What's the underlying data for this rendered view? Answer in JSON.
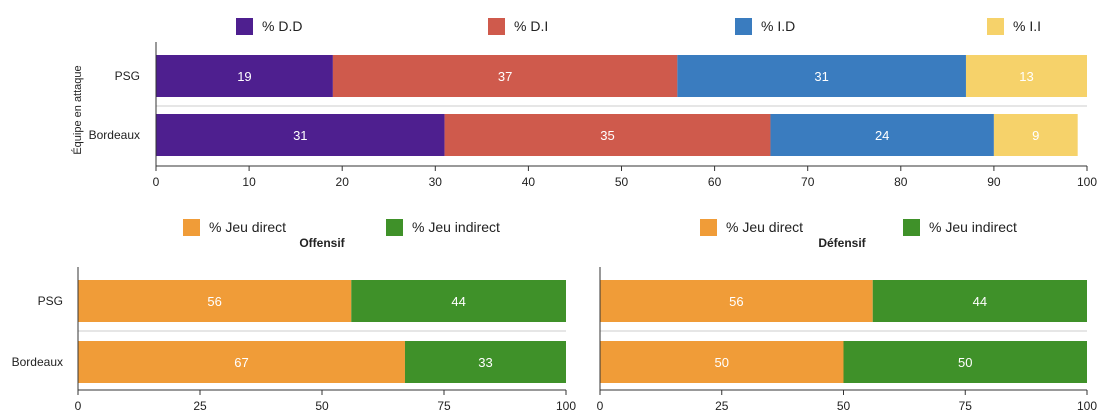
{
  "chart_data": [
    {
      "type": "bar",
      "orientation": "horizontal",
      "stacked": true,
      "categories": [
        "PSG",
        "Bordeaux"
      ],
      "series": [
        {
          "name": "% D.D",
          "values": [
            19,
            31
          ],
          "color": "#4e1f8f"
        },
        {
          "name": "% D.I",
          "values": [
            37,
            35
          ],
          "color": "#cf5a4c"
        },
        {
          "name": "% I.D",
          "values": [
            31,
            24
          ],
          "color": "#3a7cbf"
        },
        {
          "name": "% I.I",
          "values": [
            13,
            9
          ],
          "color": "#f6d26a"
        }
      ],
      "totals": [
        100,
        99
      ],
      "title": "",
      "xlabel": "",
      "ylabel": "Équipe en attaque",
      "xlim": [
        0,
        100
      ],
      "xticks": [
        "0",
        "10",
        "20",
        "30",
        "40",
        "50",
        "60",
        "70",
        "80",
        "90",
        "100"
      ],
      "legend": "top",
      "grid": false
    },
    {
      "type": "bar",
      "orientation": "horizontal",
      "stacked": true,
      "title": "Offensif",
      "categories": [
        "PSG",
        "Bordeaux"
      ],
      "series": [
        {
          "name": "% Jeu direct",
          "values": [
            56,
            67
          ],
          "color": "#f09c38"
        },
        {
          "name": "% Jeu indirect",
          "values": [
            44,
            33
          ],
          "color": "#3f9129"
        }
      ],
      "xlabel": "",
      "ylabel": "",
      "xlim": [
        0,
        100
      ],
      "xticks": [
        "0",
        "25",
        "50",
        "75",
        "100"
      ],
      "legend": "top",
      "grid": false
    },
    {
      "type": "bar",
      "orientation": "horizontal",
      "stacked": true,
      "title": "Défensif",
      "categories": [
        "PSG",
        "Bordeaux"
      ],
      "series": [
        {
          "name": "% Jeu direct",
          "values": [
            56,
            50
          ],
          "color": "#f09c38"
        },
        {
          "name": "% Jeu indirect",
          "values": [
            44,
            50
          ],
          "color": "#3f9129"
        }
      ],
      "xlabel": "",
      "ylabel": "",
      "xlim": [
        0,
        100
      ],
      "xticks": [
        "0",
        "25",
        "50",
        "75",
        "100"
      ],
      "legend": "top",
      "grid": false
    }
  ]
}
